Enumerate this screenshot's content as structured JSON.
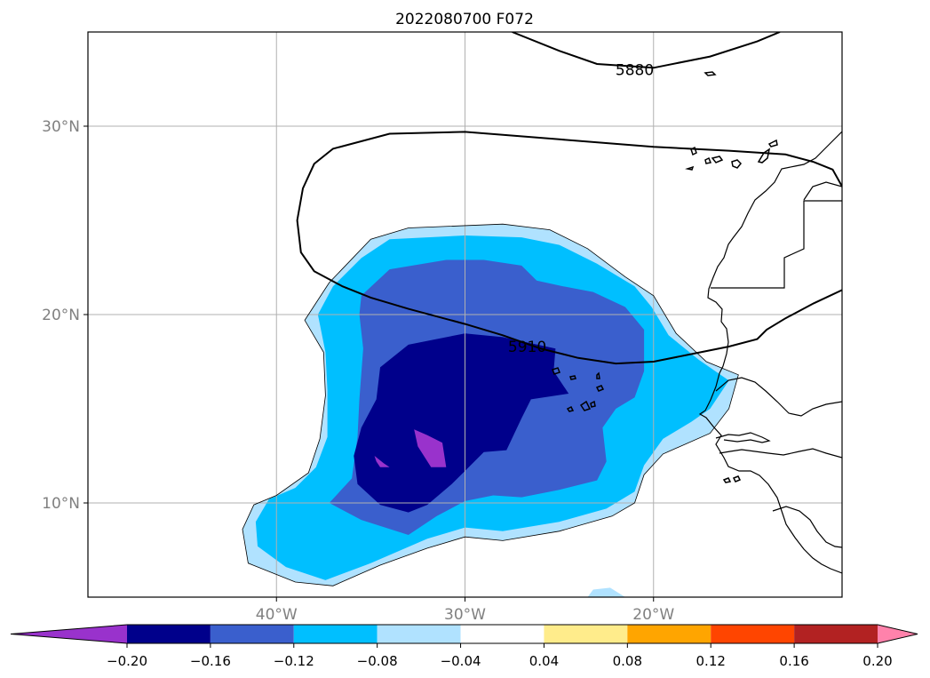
{
  "chart_data": {
    "type": "contour-map",
    "title": "2022080700 F072",
    "projection": "equirectangular",
    "xlim": [
      -50,
      -10
    ],
    "ylim": [
      5,
      35
    ],
    "x_ticks": [
      -40,
      -30,
      -20
    ],
    "x_tick_labels": [
      "40°W",
      "30°W",
      "20°W"
    ],
    "y_ticks": [
      10,
      20,
      30
    ],
    "y_tick_labels": [
      "10°N",
      "20°N",
      "30°N"
    ],
    "grid": true,
    "colorbar": {
      "orientation": "horizontal",
      "extend": "both",
      "levels": [
        -0.2,
        -0.16,
        -0.12,
        -0.08,
        -0.04,
        0.04,
        0.08,
        0.12,
        0.16,
        0.2
      ],
      "tick_labels": [
        "−0.20",
        "−0.16",
        "−0.12",
        "−0.08",
        "−0.04",
        "0.04",
        "0.08",
        "0.12",
        "0.16",
        "0.20"
      ],
      "colors": [
        "#9932cc",
        "#00008b",
        "#3a5fcd",
        "#00bfff",
        "#b0e2ff",
        "#ffffff",
        "#ffec8b",
        "#ffa500",
        "#ff4500",
        "#b22222",
        "#ff82ab"
      ]
    },
    "filled_contours": [
      {
        "level": "-0.04",
        "color": "#b0e2ff",
        "lonlat": [
          [
            -38.5,
            19.7
          ],
          [
            -37.2,
            21.7
          ],
          [
            -35,
            24
          ],
          [
            -33,
            24.6
          ],
          [
            -28,
            24.8
          ],
          [
            -25.5,
            24.5
          ],
          [
            -23.5,
            23.5
          ],
          [
            -21.5,
            22
          ],
          [
            -20,
            21
          ],
          [
            -18.8,
            19
          ],
          [
            -17.2,
            17.5
          ],
          [
            -15.5,
            16.8
          ],
          [
            -16,
            15
          ],
          [
            -17,
            13.7
          ],
          [
            -19.5,
            12.6
          ],
          [
            -20.5,
            11.5
          ],
          [
            -21,
            10
          ],
          [
            -22.2,
            9.3
          ],
          [
            -25,
            8.5
          ],
          [
            -28,
            8
          ],
          [
            -30,
            8.2
          ],
          [
            -32,
            7.6
          ],
          [
            -34.5,
            6.7
          ],
          [
            -37,
            5.6
          ],
          [
            -39,
            5.8
          ],
          [
            -41.5,
            6.8
          ],
          [
            -41.8,
            8.6
          ],
          [
            -41.2,
            9.9
          ],
          [
            -40,
            10.4
          ],
          [
            -38.3,
            11.6
          ],
          [
            -37.7,
            13.4
          ],
          [
            -37.4,
            15.7
          ],
          [
            -37.5,
            18
          ]
        ]
      },
      {
        "level": "-0.08",
        "color": "#00bfff",
        "lonlat": [
          [
            -37.8,
            20
          ],
          [
            -37,
            21.5
          ],
          [
            -35.5,
            23
          ],
          [
            -34,
            24
          ],
          [
            -30,
            24.2
          ],
          [
            -27,
            24.1
          ],
          [
            -25,
            23.7
          ],
          [
            -23,
            22.7
          ],
          [
            -21,
            21.5
          ],
          [
            -20.1,
            20.4
          ],
          [
            -19.2,
            18.9
          ],
          [
            -17.6,
            17.6
          ],
          [
            -16,
            16.5
          ],
          [
            -17,
            15
          ],
          [
            -18,
            14.3
          ],
          [
            -19.5,
            13.4
          ],
          [
            -20.5,
            12
          ],
          [
            -21,
            10.6
          ],
          [
            -22.5,
            9.7
          ],
          [
            -25,
            9
          ],
          [
            -28,
            8.5
          ],
          [
            -30,
            8.7
          ],
          [
            -32,
            8.1
          ],
          [
            -35,
            6.8
          ],
          [
            -37.4,
            5.9
          ],
          [
            -39.5,
            6.6
          ],
          [
            -41,
            7.7
          ],
          [
            -41.1,
            9
          ],
          [
            -40.4,
            10.2
          ],
          [
            -39,
            10.8
          ],
          [
            -37.9,
            11.9
          ],
          [
            -37.3,
            13.5
          ],
          [
            -37.3,
            16
          ],
          [
            -37.4,
            18
          ]
        ]
      },
      {
        "level": "-0.12",
        "color": "#3a5fcd",
        "lonlat": [
          [
            -35.5,
            21
          ],
          [
            -34,
            22.4
          ],
          [
            -31,
            22.9
          ],
          [
            -29,
            22.9
          ],
          [
            -27,
            22.6
          ],
          [
            -26.2,
            21.8
          ],
          [
            -24.8,
            21.5
          ],
          [
            -23.2,
            21.2
          ],
          [
            -21.5,
            20.4
          ],
          [
            -20.5,
            19.2
          ],
          [
            -20.5,
            17
          ],
          [
            -21,
            15.6
          ],
          [
            -22,
            15
          ],
          [
            -22.7,
            14
          ],
          [
            -22.5,
            12.2
          ],
          [
            -23,
            11.2
          ],
          [
            -25,
            10.7
          ],
          [
            -27,
            10.3
          ],
          [
            -28.5,
            10.4
          ],
          [
            -30,
            10.1
          ],
          [
            -31.5,
            9.3
          ],
          [
            -33,
            8.3
          ],
          [
            -35.5,
            9.1
          ],
          [
            -37.2,
            10
          ],
          [
            -36,
            11.3
          ],
          [
            -35.7,
            13.5
          ],
          [
            -35.6,
            15.5
          ],
          [
            -35.4,
            18.2
          ],
          [
            -35.6,
            20
          ]
        ]
      },
      {
        "level": "-0.16",
        "color": "#00008b",
        "lonlat": [
          [
            -34.5,
            17.2
          ],
          [
            -33,
            18.4
          ],
          [
            -30,
            19
          ],
          [
            -28,
            18.8
          ],
          [
            -25.2,
            18.2
          ],
          [
            -25.3,
            17
          ],
          [
            -24.5,
            15.8
          ],
          [
            -26.5,
            15.5
          ],
          [
            -27,
            14.5
          ],
          [
            -27.8,
            12.8
          ],
          [
            -29,
            12.7
          ],
          [
            -30,
            11.7
          ],
          [
            -30.7,
            11
          ],
          [
            -32,
            9.9
          ],
          [
            -33,
            9.5
          ],
          [
            -34.5,
            9.9
          ],
          [
            -35.7,
            11
          ],
          [
            -35.9,
            12.5
          ],
          [
            -35.5,
            14
          ],
          [
            -34.7,
            15.5
          ]
        ]
      },
      {
        "level": "-0.20",
        "color": "#9932cc",
        "lonlat": [
          [
            -32.7,
            13.9
          ],
          [
            -32,
            13.6
          ],
          [
            -31.2,
            13.2
          ],
          [
            -31,
            11.9
          ],
          [
            -31.8,
            11.9
          ],
          [
            -32.5,
            13
          ]
        ]
      },
      {
        "level": "-0.20",
        "color": "#9932cc",
        "lonlat": [
          [
            -34.8,
            12.5
          ],
          [
            -34.3,
            12.1
          ],
          [
            -34,
            11.9
          ],
          [
            -34.5,
            11.9
          ],
          [
            -34.7,
            12.2
          ]
        ]
      },
      {
        "level": "-0.04",
        "color": "#b0e2ff",
        "lonlat": [
          [
            -23.5,
            5
          ],
          [
            -23.2,
            5.4
          ],
          [
            -22.3,
            5.5
          ],
          [
            -21.5,
            5
          ]
        ]
      }
    ],
    "line_contours": [
      {
        "label": "5880",
        "label_lonlat": [
          -21,
          33
        ],
        "lonlat": [
          [
            -27.5,
            35
          ],
          [
            -25,
            34
          ],
          [
            -23,
            33.3
          ],
          [
            -20,
            33.1
          ],
          [
            -17,
            33.7
          ],
          [
            -14.5,
            34.5
          ],
          [
            -13.3,
            35
          ]
        ]
      },
      {
        "label": "5910",
        "label_lonlat": [
          -26.7,
          18.3
        ],
        "lonlat": [
          [
            -10,
            26.8
          ],
          [
            -10.5,
            27.7
          ],
          [
            -11.5,
            28.1
          ],
          [
            -13,
            28.5
          ],
          [
            -16,
            28.7
          ],
          [
            -20,
            28.9
          ],
          [
            -25,
            29.3
          ],
          [
            -30,
            29.7
          ],
          [
            -34,
            29.6
          ],
          [
            -37,
            28.8
          ],
          [
            -38,
            28
          ],
          [
            -38.6,
            26.7
          ],
          [
            -38.9,
            25
          ],
          [
            -38.7,
            23.3
          ],
          [
            -38,
            22.3
          ],
          [
            -36.5,
            21.5
          ],
          [
            -35,
            20.9
          ],
          [
            -33,
            20.3
          ],
          [
            -30,
            19.5
          ],
          [
            -28,
            18.9
          ],
          [
            -26,
            18.2
          ],
          [
            -24,
            17.7
          ],
          [
            -22,
            17.4
          ],
          [
            -20,
            17.5
          ],
          [
            -18,
            17.9
          ],
          [
            -16,
            18.3
          ],
          [
            -14.5,
            18.7
          ],
          [
            -14,
            19.2
          ],
          [
            -13,
            19.8
          ],
          [
            -11.5,
            20.6
          ],
          [
            -10,
            21.3
          ]
        ]
      }
    ]
  }
}
